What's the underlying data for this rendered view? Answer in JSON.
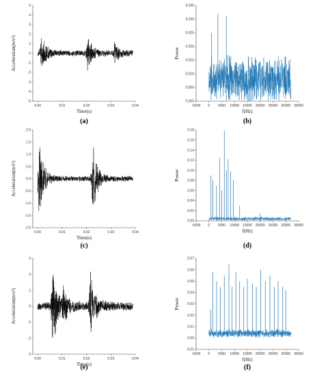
{
  "chart_data": [
    {
      "type": "line",
      "caption": "(a)",
      "xlabel": "Time(s)",
      "ylabel": "Acceleration(m/s²)",
      "xlim": [
        -0.002,
        0.04
      ],
      "ylim": [
        -5,
        5
      ],
      "xticks": [
        0,
        0.01,
        0.02,
        0.03,
        0.04
      ],
      "xticklabels": [
        "0.00",
        "0.01",
        "0.02",
        "0.03",
        "0.04"
      ],
      "yticks": [
        -5,
        -4,
        -3,
        -2,
        -1,
        0,
        1,
        2,
        3,
        4,
        5
      ],
      "yticklabels": [
        "-5",
        "-4",
        "-3",
        "-2",
        "-1",
        "0",
        "1",
        "2",
        "3",
        "4",
        "5"
      ],
      "color": "#000000",
      "series": [
        {
          "duration": 0.039,
          "bursts": [
            [
              0.0015,
              2.0
            ],
            [
              0.0205,
              2.2
            ],
            [
              0.0315,
              1.0
            ]
          ],
          "noise": 0.35
        }
      ]
    },
    {
      "type": "line",
      "caption": "(b)",
      "xlabel": "f(Hz)",
      "ylabel": "Power",
      "xlim": [
        -5000,
        35000
      ],
      "ylim": [
        0,
        0.035
      ],
      "xticks": [
        -5000,
        0,
        5000,
        10000,
        15000,
        20000,
        25000,
        30000,
        35000
      ],
      "xticklabels": [
        "-5000",
        "0",
        "5000",
        "10000",
        "15000",
        "20000",
        "25000",
        "30000",
        "35000"
      ],
      "yticks": [
        0,
        0.005,
        0.01,
        0.015,
        0.02,
        0.025,
        0.03,
        0.035
      ],
      "yticklabels": [
        "0.000",
        "0.005",
        "0.010",
        "0.015",
        "0.020",
        "0.025",
        "0.030",
        "0.035"
      ],
      "color": "#1f77b4",
      "series": [
        {
          "fmax": 32000,
          "base": 0.008,
          "spread": 0.007,
          "peaks": [
            [
              3500,
              0.032
            ],
            [
              6800,
              0.031
            ],
            [
              1000,
              0.025
            ]
          ]
        }
      ]
    },
    {
      "type": "line",
      "caption": "(c)",
      "xlabel": "Time(s)",
      "ylabel": "Acceleration(m/s²)",
      "xlim": [
        -0.002,
        0.04
      ],
      "ylim": [
        -2,
        2
      ],
      "xticks": [
        0,
        0.01,
        0.02,
        0.03,
        0.04
      ],
      "xticklabels": [
        "0.00",
        "0.01",
        "0.02",
        "0.03",
        "0.04"
      ],
      "yticks": [
        -2,
        -1.5,
        -1,
        -0.5,
        0,
        0.5,
        1,
        1.5,
        2
      ],
      "yticklabels": [
        "-2.0",
        "-1.5",
        "-1.0",
        "-0.5",
        "0.0",
        "0.5",
        "1.0",
        "1.5",
        "2.0"
      ],
      "color": "#000000",
      "series": [
        {
          "duration": 0.039,
          "bursts": [
            [
              0.0005,
              1.8
            ],
            [
              0.0225,
              1.6
            ]
          ],
          "noise": 0.12
        }
      ]
    },
    {
      "type": "line",
      "caption": "(d)",
      "xlabel": "f(Hz)",
      "ylabel": "Power",
      "xlim": [
        -5000,
        35000
      ],
      "ylim": [
        0,
        0.18
      ],
      "xticks": [
        -5000,
        0,
        5000,
        10000,
        15000,
        20000,
        25000,
        30000,
        35000
      ],
      "xticklabels": [
        "-5000",
        "0",
        "5000",
        "10000",
        "15000",
        "20000",
        "25000",
        "30000",
        "35000"
      ],
      "yticks": [
        0,
        0.02,
        0.04,
        0.06,
        0.08,
        0.1,
        0.12,
        0.14,
        0.16,
        0.18
      ],
      "yticklabels": [
        "0.00",
        "0.02",
        "0.04",
        "0.06",
        "0.08",
        "0.10",
        "0.12",
        "0.14",
        "0.16",
        "0.18"
      ],
      "color": "#1f77b4",
      "series": [
        {
          "fmax": 32000,
          "base": 0.004,
          "spread": 0.003,
          "peaks": [
            [
              800,
              0.09
            ],
            [
              1500,
              0.08
            ],
            [
              3000,
              0.07
            ],
            [
              4200,
              0.125
            ],
            [
              5000,
              0.06
            ],
            [
              6000,
              0.178
            ],
            [
              6800,
              0.1
            ],
            [
              7500,
              0.122
            ],
            [
              8500,
              0.098
            ],
            [
              9500,
              0.08
            ],
            [
              12000,
              0.03
            ],
            [
              20000,
              0.015
            ]
          ]
        }
      ]
    },
    {
      "type": "line",
      "caption": "(e)",
      "xlabel": "Time(s)",
      "ylabel": "Acceleration(m/s²)",
      "xlim": [
        -0.002,
        0.04
      ],
      "ylim": [
        -3,
        3
      ],
      "xticks": [
        0,
        0.01,
        0.02,
        0.03,
        0.04
      ],
      "xticklabels": [
        "0.00",
        "0.01",
        "0.02",
        "0.03",
        "0.04"
      ],
      "yticks": [
        -3,
        -2,
        -1,
        0,
        1,
        2,
        3
      ],
      "yticklabels": [
        "-3",
        "-2",
        "-1",
        "0",
        "1",
        "2",
        "3"
      ],
      "color": "#000000",
      "series": [
        {
          "duration": 0.039,
          "bursts": [
            [
              0.006,
              2.9
            ],
            [
              0.0215,
              2.2
            ],
            [
              0.0105,
              1.0
            ]
          ],
          "noise": 0.3
        }
      ]
    },
    {
      "type": "line",
      "caption": "(f)",
      "xlabel": "f(Hz)",
      "ylabel": "Power",
      "xlim": [
        -5000,
        35000
      ],
      "ylim": [
        -0.01,
        0.07
      ],
      "xticks": [
        -5000,
        0,
        5000,
        10000,
        15000,
        20000,
        25000,
        30000,
        35000
      ],
      "xticklabels": [
        "-5000",
        "0",
        "5000",
        "10000",
        "15000",
        "20000",
        "25000",
        "30000",
        "35000"
      ],
      "yticks": [
        -0.01,
        0,
        0.01,
        0.02,
        0.03,
        0.04,
        0.05,
        0.06,
        0.07
      ],
      "yticklabels": [
        "-0.01",
        "0.00",
        "0.01",
        "0.02",
        "0.03",
        "0.04",
        "0.05",
        "0.06",
        "0.07"
      ],
      "color": "#1f77b4",
      "series": [
        {
          "fmax": 32000,
          "base": 0.004,
          "spread": 0.003,
          "peaks": [
            [
              700,
              0.025
            ],
            [
              1500,
              0.058
            ],
            [
              3000,
              0.05
            ],
            [
              4500,
              0.045
            ],
            [
              6000,
              0.055
            ],
            [
              7800,
              0.065
            ],
            [
              9000,
              0.045
            ],
            [
              10500,
              0.058
            ],
            [
              12000,
              0.05
            ],
            [
              13500,
              0.045
            ],
            [
              15000,
              0.052
            ],
            [
              17000,
              0.048
            ],
            [
              18500,
              0.045
            ],
            [
              20200,
              0.06
            ],
            [
              22000,
              0.05
            ],
            [
              23800,
              0.055
            ],
            [
              25500,
              0.045
            ],
            [
              27000,
              0.05
            ],
            [
              28800,
              0.045
            ],
            [
              30000,
              0.042
            ]
          ]
        }
      ]
    }
  ]
}
